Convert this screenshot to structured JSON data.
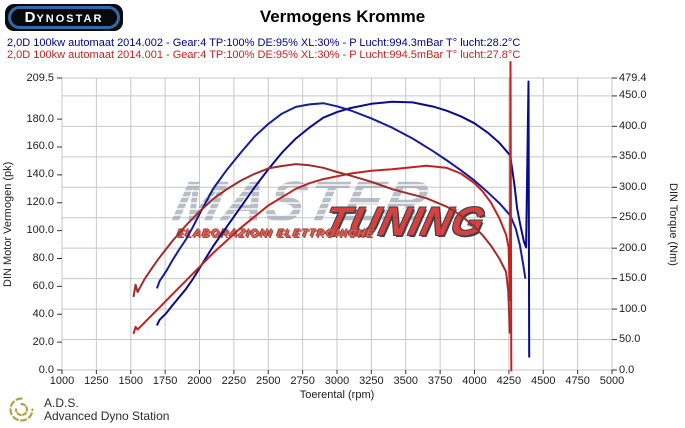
{
  "header": {
    "logo_text": "DYNOSTAR",
    "logo_fineprint": "···",
    "title": "Vermogens Kromme"
  },
  "legend": {
    "items": [
      {
        "label": "2,0D 100kw automaat 2014.002 - Gear:4 TP:100% DE:95% XL:30% - P Lucht:994.3mBar T° lucht:28.2°C",
        "color": "#00008c"
      },
      {
        "label": "2,0D 100kw automaat 2014.001 - Gear:4 TP:100% DE:95% XL:30% - P Lucht:994.5mBar T° lucht:27.8°C",
        "color": "#c52222"
      }
    ]
  },
  "watermark": {
    "gray_text": "MASTER",
    "red_text": "TUNING",
    "sub_text": "ELABORAZIONI ELETTRONICHE"
  },
  "footer": {
    "abbr": "A.D.S.",
    "name": "Advanced Dyno Station",
    "icon_color": "#b2a23c"
  },
  "chart_data": {
    "type": "line",
    "title": "Vermogens Kromme",
    "grid": {
      "show": true,
      "color": "#c7c7c7",
      "h_lines_follow": "right_axis_50Nm",
      "v_lines_step_rpm": 250
    },
    "x_axis": {
      "label": "Toerental (rpm)",
      "min": 1000,
      "max": 5000,
      "ticks": [
        1000,
        1250,
        1500,
        1750,
        2000,
        2250,
        2500,
        2750,
        3000,
        3250,
        3500,
        3750,
        4000,
        4250,
        4500,
        4750,
        5000
      ]
    },
    "y_left": {
      "label": "DIN Motor Vermogen (pk)",
      "min": 0,
      "max": 209.5,
      "tick_values": [
        209.5,
        180,
        160,
        140,
        120,
        100,
        80,
        60,
        40,
        20,
        0
      ],
      "tick_labels": [
        "209.5",
        "180.0",
        "160.0",
        "140.0",
        "120.0",
        "100.0",
        "80.0",
        "60.0",
        "40.0",
        "20.0",
        "0.0"
      ]
    },
    "y_right": {
      "label": "DIN Torque (Nm)",
      "min": 0,
      "max": 479.4,
      "tick_values": [
        479.4,
        450,
        400,
        350,
        300,
        250,
        200,
        150,
        100,
        50,
        0
      ],
      "tick_labels": [
        "479.4",
        "450.0",
        "400.0",
        "350.0",
        "300.0",
        "250.0",
        "200.0",
        "150.0",
        "100.0",
        "50.0",
        "0.0"
      ]
    },
    "series": [
      {
        "name": "Run 2014.002 vermogen (pk)",
        "axis": "left",
        "color": "#0a0a8c",
        "peak": {
          "rpm": 3400,
          "value": 192.5
        },
        "points": [
          [
            1690,
            32
          ],
          [
            1710,
            36
          ],
          [
            1760,
            41
          ],
          [
            1800,
            46
          ],
          [
            1850,
            52
          ],
          [
            1900,
            58
          ],
          [
            1950,
            65
          ],
          [
            2000,
            73
          ],
          [
            2100,
            89
          ],
          [
            2200,
            103
          ],
          [
            2300,
            117
          ],
          [
            2400,
            131
          ],
          [
            2500,
            144
          ],
          [
            2600,
            156
          ],
          [
            2700,
            166
          ],
          [
            2800,
            174
          ],
          [
            2900,
            181
          ],
          [
            3000,
            185
          ],
          [
            3100,
            188
          ],
          [
            3250,
            191
          ],
          [
            3400,
            192.5
          ],
          [
            3550,
            192
          ],
          [
            3700,
            189
          ],
          [
            3800,
            186
          ],
          [
            3900,
            182
          ],
          [
            4000,
            177
          ],
          [
            4100,
            170
          ],
          [
            4180,
            163
          ],
          [
            4260,
            154
          ],
          [
            4290,
            133
          ],
          [
            4310,
            116
          ],
          [
            4335,
            103
          ],
          [
            4360,
            92
          ],
          [
            4375,
            88
          ],
          [
            4393,
            207
          ],
          [
            4398,
            9
          ]
        ]
      },
      {
        "name": "Run 2014.002 torque (Nm)",
        "axis": "right",
        "color": "#151e96",
        "peak": {
          "rpm": 2900,
          "value": 438
        },
        "points": [
          [
            1690,
            134
          ],
          [
            1710,
            146
          ],
          [
            1760,
            163
          ],
          [
            1800,
            179
          ],
          [
            1850,
            197
          ],
          [
            1900,
            214
          ],
          [
            1950,
            234
          ],
          [
            2000,
            256
          ],
          [
            2100,
            298
          ],
          [
            2200,
            329
          ],
          [
            2300,
            357
          ],
          [
            2400,
            383
          ],
          [
            2500,
            404
          ],
          [
            2600,
            421
          ],
          [
            2700,
            432
          ],
          [
            2800,
            436
          ],
          [
            2900,
            438
          ],
          [
            3000,
            433
          ],
          [
            3100,
            426
          ],
          [
            3250,
            413
          ],
          [
            3400,
            398
          ],
          [
            3550,
            380
          ],
          [
            3700,
            359
          ],
          [
            3800,
            344
          ],
          [
            3900,
            328
          ],
          [
            4000,
            311
          ],
          [
            4100,
            291
          ],
          [
            4180,
            274
          ],
          [
            4260,
            254
          ],
          [
            4300,
            232
          ],
          [
            4330,
            205
          ],
          [
            4355,
            172
          ],
          [
            4370,
            150
          ]
        ]
      },
      {
        "name": "Run 2014.001 vermogen (pk)",
        "axis": "left",
        "color": "#c52020",
        "peak": {
          "rpm": 3650,
          "value": 146.5
        },
        "points": [
          [
            1520,
            26
          ],
          [
            1535,
            31
          ],
          [
            1550,
            29
          ],
          [
            1600,
            34
          ],
          [
            1650,
            39
          ],
          [
            1700,
            44
          ],
          [
            1800,
            54
          ],
          [
            1900,
            64
          ],
          [
            2000,
            74
          ],
          [
            2100,
            84
          ],
          [
            2200,
            93
          ],
          [
            2300,
            102
          ],
          [
            2400,
            110
          ],
          [
            2500,
            118
          ],
          [
            2600,
            124
          ],
          [
            2700,
            130
          ],
          [
            2800,
            134
          ],
          [
            2900,
            137
          ],
          [
            3000,
            139
          ],
          [
            3100,
            141
          ],
          [
            3250,
            143
          ],
          [
            3400,
            144
          ],
          [
            3500,
            145
          ],
          [
            3650,
            146.5
          ],
          [
            3800,
            145
          ],
          [
            3900,
            141
          ],
          [
            4000,
            134
          ],
          [
            4060,
            128
          ],
          [
            4120,
            120
          ],
          [
            4180,
            109
          ],
          [
            4230,
            97
          ],
          [
            4248,
            88
          ],
          [
            4258,
            50
          ],
          [
            4262,
            221
          ],
          [
            4268,
            -1
          ]
        ]
      },
      {
        "name": "Run 2014.001 torque (Nm)",
        "axis": "right",
        "color": "#9e2c2c",
        "peak": {
          "rpm": 2700,
          "value": 338
        },
        "points": [
          [
            1520,
            120
          ],
          [
            1535,
            140
          ],
          [
            1550,
            128
          ],
          [
            1600,
            149
          ],
          [
            1650,
            166
          ],
          [
            1700,
            182
          ],
          [
            1800,
            211
          ],
          [
            1900,
            237
          ],
          [
            2000,
            260
          ],
          [
            2100,
            281
          ],
          [
            2200,
            297
          ],
          [
            2300,
            311
          ],
          [
            2400,
            322
          ],
          [
            2500,
            331
          ],
          [
            2600,
            335
          ],
          [
            2700,
            338
          ],
          [
            2800,
            336
          ],
          [
            2900,
            332
          ],
          [
            3000,
            325
          ],
          [
            3100,
            319
          ],
          [
            3250,
            309
          ],
          [
            3400,
            297
          ],
          [
            3500,
            291
          ],
          [
            3650,
            282
          ],
          [
            3800,
            268
          ],
          [
            3900,
            254
          ],
          [
            4000,
            235
          ],
          [
            4060,
            221
          ],
          [
            4120,
            204
          ],
          [
            4180,
            183
          ],
          [
            4230,
            161
          ],
          [
            4245,
            130
          ],
          [
            4252,
            95
          ],
          [
            4256,
            60
          ]
        ]
      }
    ]
  }
}
